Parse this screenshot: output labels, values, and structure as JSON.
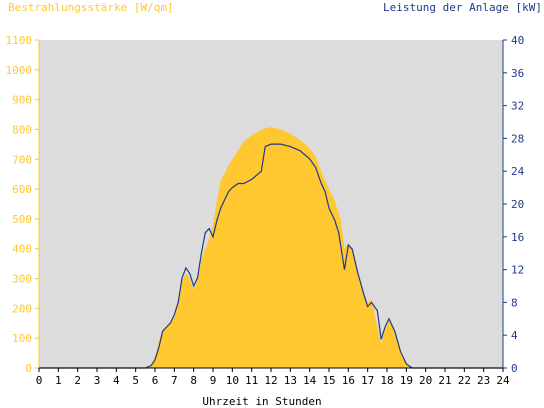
{
  "colors": {
    "plot_background": "#DCDCDC",
    "irradiance": "#FFC830",
    "power": "#1F3A8A",
    "left_axis": "#FFC830",
    "right_axis": "#1F3A8A",
    "axis_text": "#000000"
  },
  "chart_data": {
    "type": "area",
    "left_axis_label": "Bestrahlungsstärke [W/qm]",
    "right_axis_label": "Leistung der Anlage [kW]",
    "xlabel": "Uhrzeit in Stunden",
    "xlim": [
      0,
      24
    ],
    "ylim_left": [
      0,
      1100
    ],
    "ylim_right": [
      0,
      40
    ],
    "x_ticks": [
      "0",
      "1",
      "2",
      "3",
      "4",
      "5",
      "6",
      "7",
      "8",
      "9",
      "10",
      "11",
      "12",
      "13",
      "14",
      "15",
      "16",
      "17",
      "18",
      "19",
      "20",
      "21",
      "22",
      "23",
      "24"
    ],
    "left_ticks": [
      "0",
      "100",
      "200",
      "300",
      "400",
      "500",
      "600",
      "700",
      "800",
      "900",
      "1000",
      "1100"
    ],
    "right_ticks": [
      "0",
      "4",
      "8",
      "12",
      "16",
      "20",
      "24",
      "28",
      "32",
      "36",
      "40"
    ],
    "grid": false,
    "series": [
      {
        "axis": "left",
        "style": "filled-area",
        "points": [
          [
            0,
            0
          ],
          [
            5.5,
            0
          ],
          [
            5.8,
            10
          ],
          [
            6.0,
            40
          ],
          [
            6.2,
            90
          ],
          [
            6.4,
            130
          ],
          [
            6.6,
            140
          ],
          [
            6.8,
            155
          ],
          [
            7.0,
            170
          ],
          [
            7.2,
            220
          ],
          [
            7.4,
            290
          ],
          [
            7.6,
            320
          ],
          [
            7.8,
            300
          ],
          [
            8.0,
            260
          ],
          [
            8.2,
            300
          ],
          [
            8.4,
            360
          ],
          [
            8.6,
            400
          ],
          [
            8.8,
            430
          ],
          [
            9.0,
            480
          ],
          [
            9.2,
            560
          ],
          [
            9.4,
            630
          ],
          [
            9.6,
            650
          ],
          [
            9.8,
            680
          ],
          [
            10.0,
            700
          ],
          [
            10.3,
            730
          ],
          [
            10.6,
            760
          ],
          [
            11.0,
            780
          ],
          [
            11.5,
            800
          ],
          [
            12.0,
            808
          ],
          [
            12.5,
            800
          ],
          [
            13.0,
            785
          ],
          [
            13.5,
            765
          ],
          [
            14.0,
            735
          ],
          [
            14.3,
            710
          ],
          [
            14.6,
            660
          ],
          [
            15.0,
            600
          ],
          [
            15.3,
            560
          ],
          [
            15.6,
            500
          ],
          [
            15.8,
            400
          ],
          [
            16.0,
            420
          ],
          [
            16.2,
            400
          ],
          [
            16.5,
            310
          ],
          [
            16.8,
            240
          ],
          [
            17.0,
            220
          ],
          [
            17.2,
            230
          ],
          [
            17.5,
            140
          ],
          [
            17.7,
            80
          ],
          [
            17.9,
            130
          ],
          [
            18.1,
            160
          ],
          [
            18.4,
            120
          ],
          [
            18.7,
            50
          ],
          [
            19.0,
            10
          ],
          [
            19.3,
            0
          ],
          [
            24,
            0
          ]
        ]
      },
      {
        "axis": "right",
        "style": "line",
        "points": [
          [
            0,
            0
          ],
          [
            5.5,
            0
          ],
          [
            5.8,
            0.3
          ],
          [
            6.0,
            1.0
          ],
          [
            6.2,
            2.5
          ],
          [
            6.4,
            4.5
          ],
          [
            6.6,
            5.0
          ],
          [
            6.8,
            5.5
          ],
          [
            7.0,
            6.5
          ],
          [
            7.2,
            8.0
          ],
          [
            7.4,
            11.0
          ],
          [
            7.6,
            12.2
          ],
          [
            7.8,
            11.5
          ],
          [
            8.0,
            10.0
          ],
          [
            8.2,
            11.0
          ],
          [
            8.4,
            14.0
          ],
          [
            8.6,
            16.5
          ],
          [
            8.8,
            17.0
          ],
          [
            9.0,
            16.0
          ],
          [
            9.2,
            18.0
          ],
          [
            9.4,
            19.5
          ],
          [
            9.6,
            20.5
          ],
          [
            9.8,
            21.5
          ],
          [
            10.0,
            22.0
          ],
          [
            10.3,
            22.5
          ],
          [
            10.6,
            22.5
          ],
          [
            11.0,
            23.0
          ],
          [
            11.5,
            24.0
          ],
          [
            11.7,
            27.0
          ],
          [
            12.0,
            27.3
          ],
          [
            12.5,
            27.3
          ],
          [
            13.0,
            27.0
          ],
          [
            13.5,
            26.5
          ],
          [
            14.0,
            25.5
          ],
          [
            14.3,
            24.5
          ],
          [
            14.6,
            22.5
          ],
          [
            14.8,
            21.5
          ],
          [
            15.0,
            19.5
          ],
          [
            15.3,
            18.0
          ],
          [
            15.5,
            16.5
          ],
          [
            15.8,
            12.0
          ],
          [
            16.0,
            15.0
          ],
          [
            16.2,
            14.5
          ],
          [
            16.5,
            11.5
          ],
          [
            16.8,
            9.0
          ],
          [
            17.0,
            7.5
          ],
          [
            17.2,
            8.0
          ],
          [
            17.5,
            7.0
          ],
          [
            17.7,
            3.5
          ],
          [
            17.9,
            5.0
          ],
          [
            18.1,
            6.0
          ],
          [
            18.4,
            4.5
          ],
          [
            18.7,
            2.0
          ],
          [
            19.0,
            0.5
          ],
          [
            19.3,
            0
          ],
          [
            24,
            0
          ]
        ]
      }
    ]
  }
}
